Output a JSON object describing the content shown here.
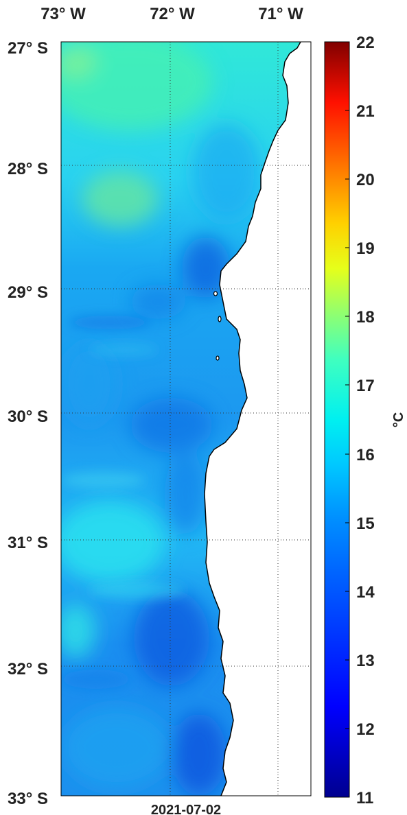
{
  "map": {
    "lon_labels": [
      "73° W",
      "72° W",
      "71° W"
    ],
    "lat_labels": [
      "27° S",
      "28° S",
      "29° S",
      "30° S",
      "31° S",
      "32° S",
      "33° S"
    ],
    "date": "2021-07-02",
    "extent": {
      "lon": [
        -73,
        -70.75
      ],
      "lat": [
        -33,
        -27
      ]
    }
  },
  "colorbar": {
    "ticks": [
      "22",
      "21",
      "20",
      "19",
      "18",
      "17",
      "16",
      "15",
      "14",
      "13",
      "12",
      "11"
    ],
    "unit": "°C",
    "range": [
      11,
      22
    ]
  },
  "colors": {
    "land": "#ffffff",
    "coast": "#000000",
    "grid": "#333333",
    "frame": "#000000"
  }
}
